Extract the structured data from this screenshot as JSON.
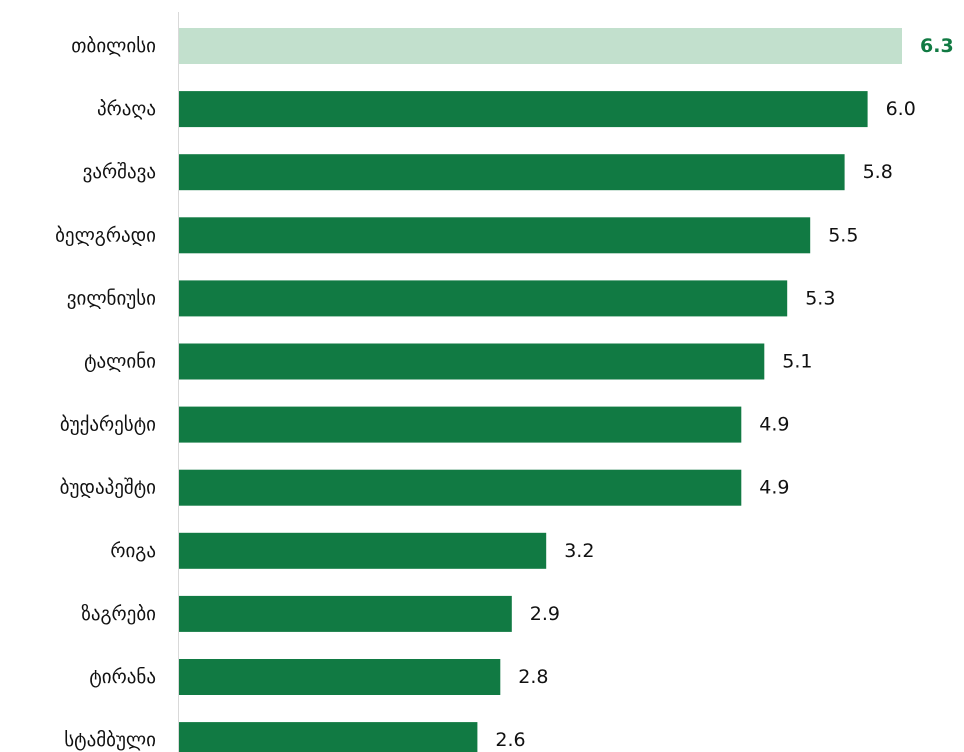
{
  "chart_data": {
    "type": "bar",
    "orientation": "horizontal",
    "categories": [
      "თბილისი",
      "პრაღა",
      "ვარშავა",
      "ბელგრადი",
      "ვილნიუსი",
      "ტალინი",
      "ბუქარესტი",
      "ბუდაპეშტი",
      "რიგა",
      "ზაგრები",
      "ტირანა",
      "სტამბული"
    ],
    "values": [
      6.3,
      6.0,
      5.8,
      5.5,
      5.3,
      5.1,
      4.9,
      4.9,
      3.2,
      2.9,
      2.8,
      2.6
    ],
    "value_labels": [
      "6.3",
      "6.0",
      "5.8",
      "5.5",
      "5.3",
      "5.1",
      "4.9",
      "4.9",
      "3.2",
      "2.9",
      "2.8",
      "2.6"
    ],
    "highlight_index": 0,
    "xlim": [
      0,
      6.3
    ],
    "grid": false,
    "colors": {
      "bar": "#117a43",
      "highlight_bar": "#c2e0cd",
      "highlight_text": "#117a43",
      "text": "#111111",
      "axis": "#d9d9d9"
    }
  }
}
